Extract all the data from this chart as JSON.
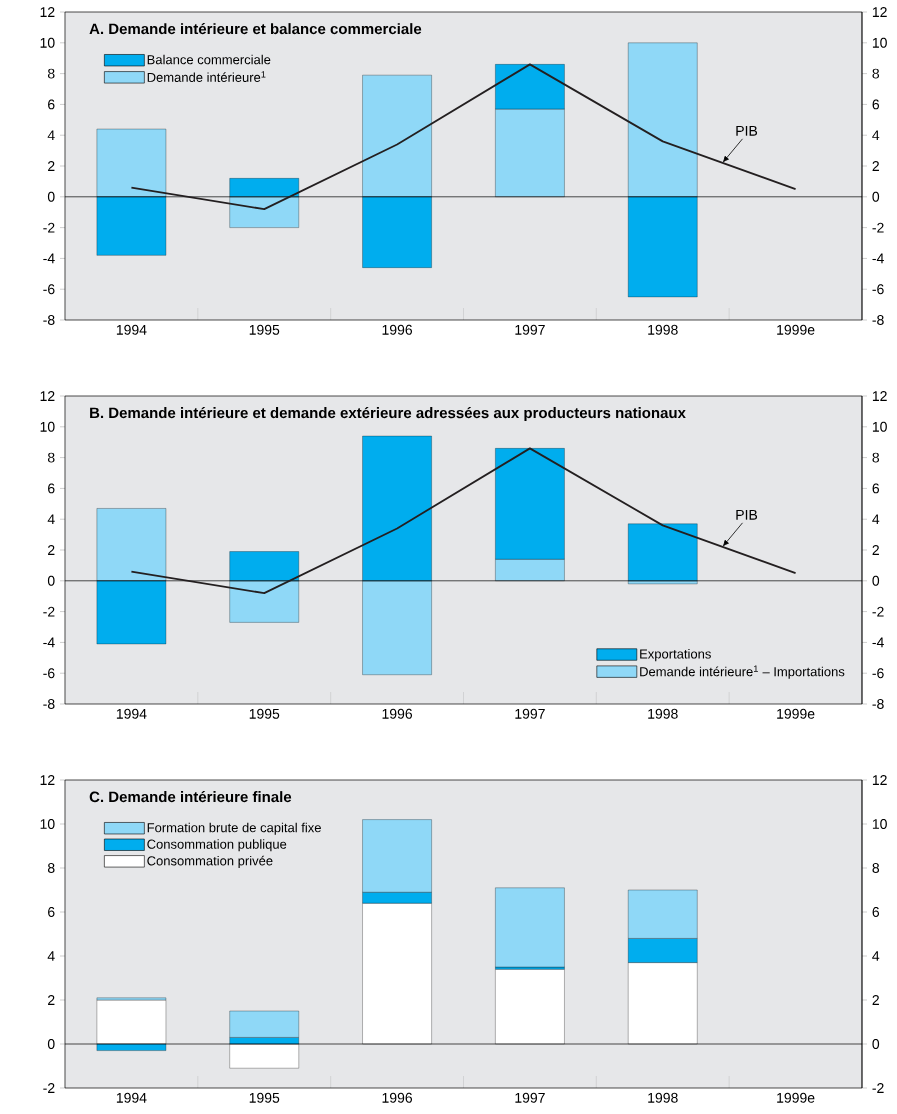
{
  "chart_data": [
    {
      "type": "bar",
      "title": "A.  Demande intérieure et balance commerciale",
      "categories": [
        "1994",
        "1995",
        "1996",
        "1997",
        "1998",
        "1999e"
      ],
      "stacked": true,
      "legend": "top left",
      "series": [
        {
          "name": "Demande intérieure$^{1}$",
          "color": "#8fd8f7",
          "values": [
            4.4,
            -2.0,
            7.9,
            5.7,
            10.0,
            null
          ]
        },
        {
          "name": "Balance commerciale",
          "color": "#00adee",
          "values": [
            -3.8,
            1.2,
            -4.6,
            2.9,
            -6.5,
            null
          ]
        },
        {
          "name": "PIB",
          "type": "line",
          "color": "#231f20",
          "values": [
            0.6,
            -0.8,
            3.4,
            8.6,
            3.6,
            0.5
          ]
        }
      ],
      "ylim": [
        -8,
        12
      ],
      "yticks": [
        -8,
        -6,
        -4,
        -2,
        0,
        2,
        4,
        6,
        8,
        10,
        12
      ],
      "y2lim": [
        -8,
        12
      ],
      "y2ticks": [
        -8,
        -6,
        -4,
        -2,
        0,
        2,
        4,
        6,
        8,
        10,
        12
      ]
    },
    {
      "type": "bar",
      "title": "B.  Demande intérieure et demande extérieure adressées aux producteurs nationaux",
      "categories": [
        "1994",
        "1995",
        "1996",
        "1997",
        "1998",
        "1999e"
      ],
      "stacked": true,
      "legend": "bottom right",
      "series": [
        {
          "name": "Demande intérieure$^{1}$ – Importations",
          "color": "#8fd8f7",
          "values": [
            4.7,
            -2.7,
            -6.1,
            1.4,
            -0.2,
            null
          ]
        },
        {
          "name": "Exportations",
          "color": "#00adee",
          "values": [
            -4.1,
            1.9,
            9.4,
            7.2,
            3.7,
            null
          ]
        },
        {
          "name": "PIB",
          "type": "line",
          "color": "#231f20",
          "values": [
            0.6,
            -0.8,
            3.4,
            8.6,
            3.6,
            0.5
          ]
        }
      ],
      "ylim": [
        -8,
        12
      ],
      "yticks": [
        -8,
        -6,
        -4,
        -2,
        0,
        2,
        4,
        6,
        8,
        10,
        12
      ],
      "y2lim": [
        -8,
        12
      ],
      "y2ticks": [
        -8,
        -6,
        -4,
        -2,
        0,
        2,
        4,
        6,
        8,
        10,
        12
      ]
    },
    {
      "type": "bar",
      "title": "C.  Demande intérieure finale",
      "categories": [
        "1994",
        "1995",
        "1996",
        "1997",
        "1998",
        "1999e"
      ],
      "stacked": true,
      "legend": "top left",
      "series": [
        {
          "name": "Consommation privée",
          "color": "#ffffff",
          "values": [
            2.0,
            -1.1,
            6.4,
            3.4,
            3.7,
            null
          ]
        },
        {
          "name": "Consommation publique",
          "color": "#00adee",
          "values": [
            -0.3,
            0.3,
            0.5,
            0.1,
            1.1,
            null
          ]
        },
        {
          "name": "Formation brute de capital fixe",
          "color": "#8fd8f7",
          "values": [
            0.1,
            1.2,
            3.3,
            3.6,
            2.2,
            null
          ]
        }
      ],
      "ylim": [
        -2,
        12
      ],
      "yticks": [
        -2,
        0,
        2,
        4,
        6,
        8,
        10,
        12
      ],
      "y2lim": [
        -2,
        12
      ],
      "y2ticks": [
        -2,
        0,
        2,
        4,
        6,
        8,
        10,
        12
      ]
    }
  ]
}
